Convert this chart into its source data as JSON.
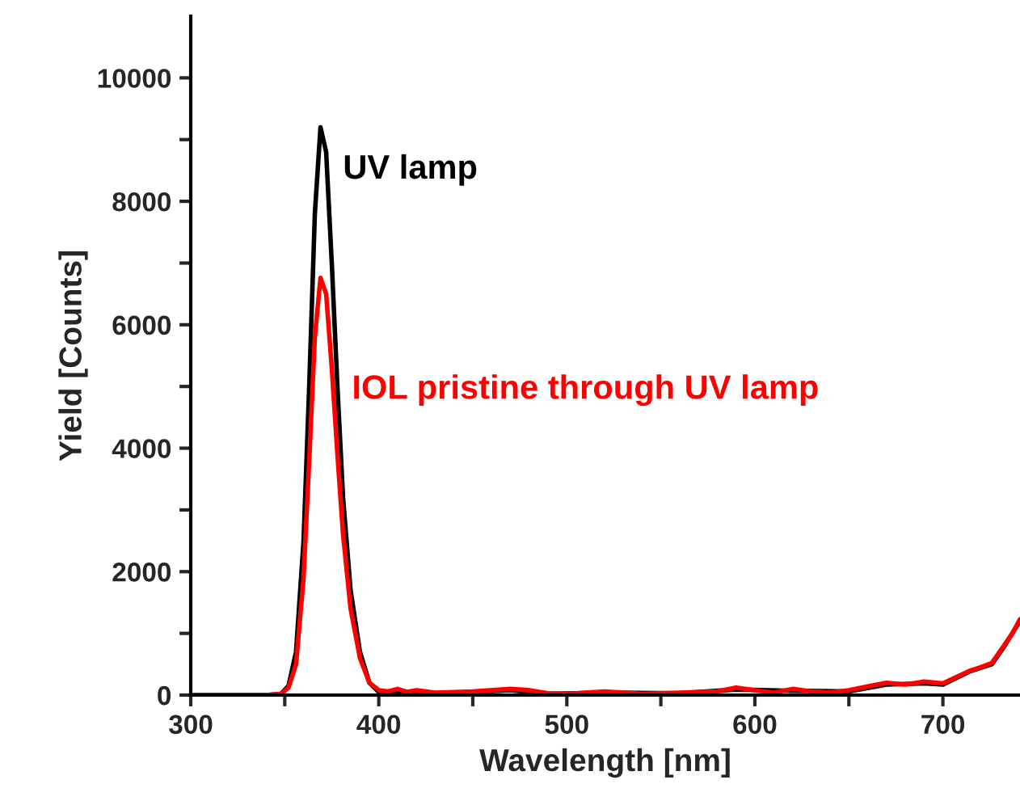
{
  "chart_data": {
    "type": "line",
    "xlabel": "Wavelength [nm]",
    "ylabel": "Yield [Counts]",
    "xlim": [
      300,
      741
    ],
    "ylim": [
      0,
      11000
    ],
    "xticks": [
      300,
      {
        "value": 350,
        "label": null
      },
      400,
      {
        "value": 450,
        "label": null
      },
      500,
      {
        "value": 550,
        "label": null
      },
      600,
      {
        "value": 650,
        "label": null
      },
      700
    ],
    "yticks": [
      0,
      {
        "value": 1000,
        "label": null
      },
      2000,
      {
        "value": 3000,
        "label": null
      },
      4000,
      {
        "value": 5000,
        "label": null
      },
      6000,
      {
        "value": 7000,
        "label": null
      },
      8000,
      {
        "value": 9000,
        "label": null
      },
      10000
    ],
    "grid": false,
    "legend": false,
    "marker": "none",
    "line_style": "solid",
    "series": [
      {
        "name": "UV lamp",
        "color": "#000000",
        "x": [
          300,
          340,
          348,
          352,
          356,
          360,
          363,
          366,
          369,
          372,
          375,
          378,
          381,
          385,
          390,
          395,
          400,
          410,
          430,
          450,
          470,
          490,
          520,
          560,
          590,
          620,
          650,
          670,
          690,
          700,
          714,
          726,
          732,
          741
        ],
        "values": [
          0,
          0,
          20,
          150,
          700,
          2500,
          5000,
          7800,
          9200,
          8800,
          7000,
          5000,
          3200,
          1700,
          700,
          200,
          50,
          30,
          30,
          50,
          80,
          20,
          40,
          30,
          90,
          70,
          60,
          170,
          190,
          170,
          380,
          500,
          760,
          1200
        ]
      },
      {
        "name": "IOL pristine through UV lamp",
        "color": "#ff0000",
        "x": [
          300,
          340,
          348,
          352,
          356,
          360,
          363,
          366,
          369,
          372,
          375,
          378,
          381,
          385,
          390,
          395,
          400,
          405,
          410,
          415,
          420,
          430,
          450,
          470,
          480,
          490,
          500,
          520,
          540,
          560,
          580,
          590,
          600,
          610,
          620,
          630,
          640,
          650,
          660,
          670,
          680,
          690,
          700,
          705,
          714,
          720,
          726,
          732,
          737,
          741
        ],
        "values": [
          0,
          0,
          20,
          120,
          500,
          1900,
          3800,
          5800,
          6760,
          6500,
          5300,
          3900,
          2600,
          1400,
          600,
          200,
          80,
          60,
          100,
          50,
          80,
          40,
          60,
          100,
          80,
          30,
          20,
          60,
          20,
          40,
          60,
          120,
          80,
          40,
          100,
          60,
          40,
          80,
          140,
          200,
          170,
          220,
          190,
          260,
          390,
          450,
          520,
          780,
          1000,
          1230
        ]
      }
    ]
  }
}
